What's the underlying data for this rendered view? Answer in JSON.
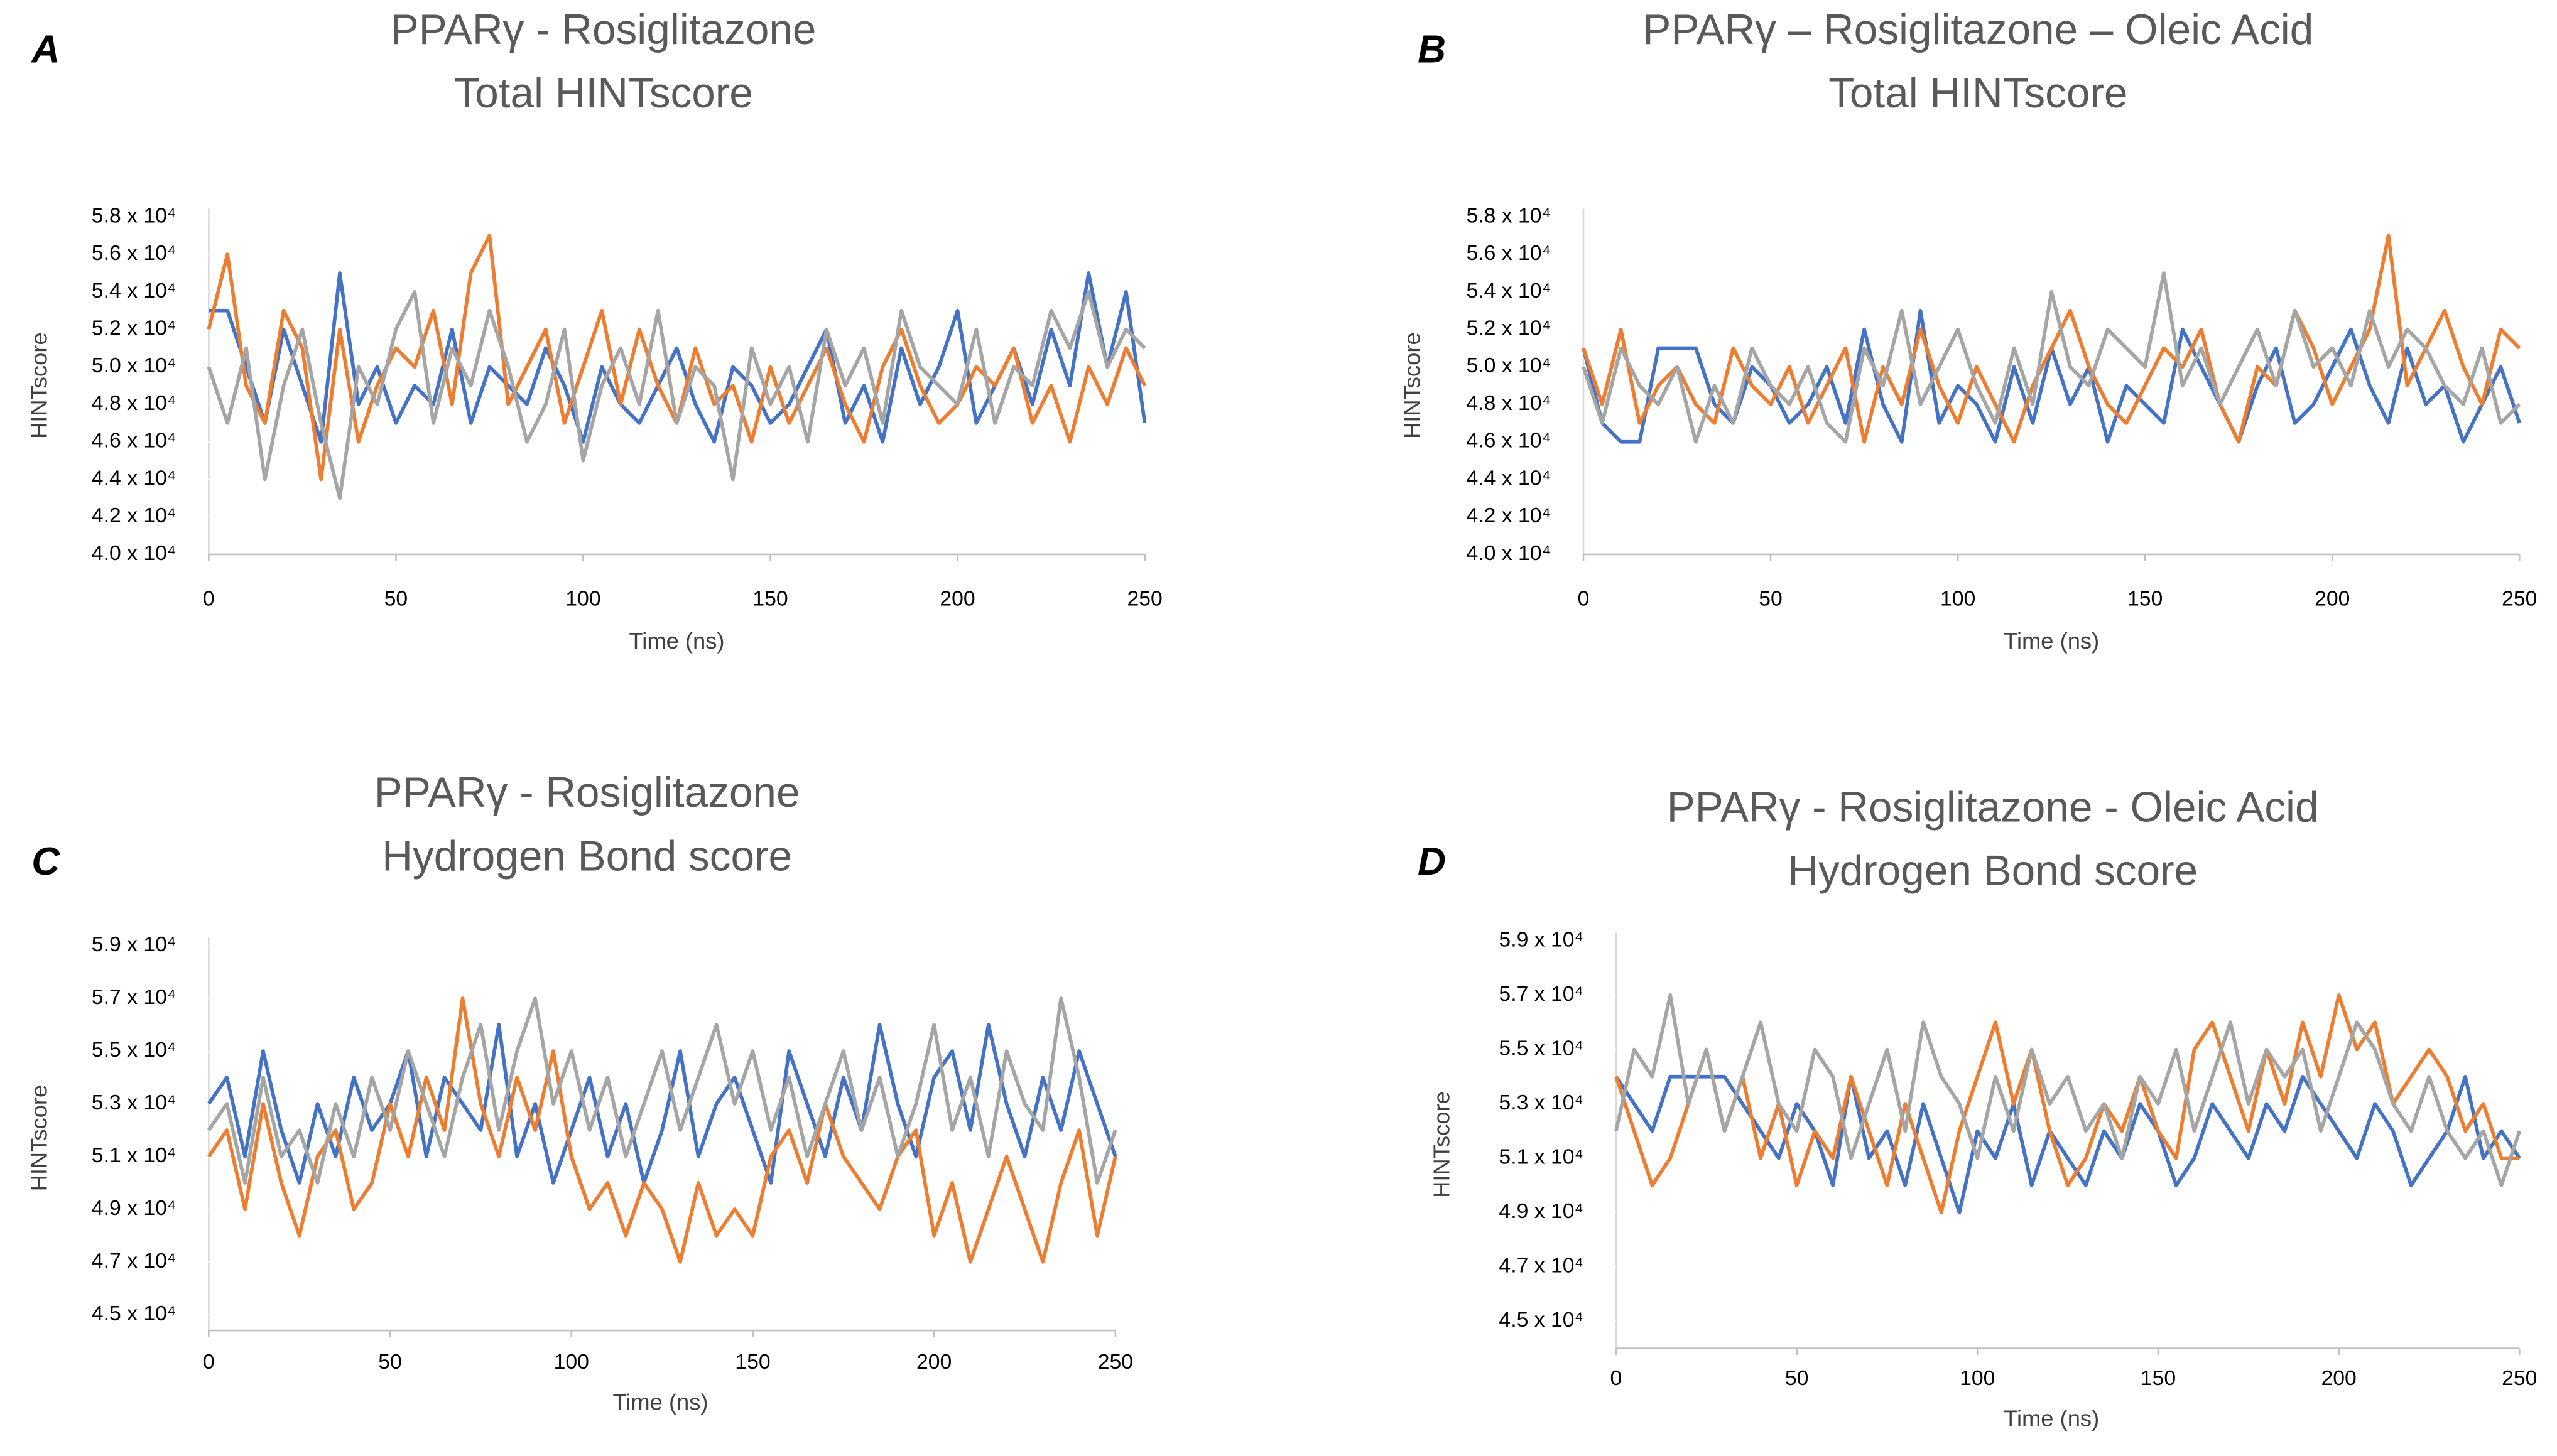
{
  "chart_data": [
    {
      "type": "line",
      "panel_label": "A",
      "title": "PPARγ - Rosiglitazone",
      "subtitle": "Total HINTscore",
      "x_label": "Time (ns)",
      "y_label": "HINTscore",
      "xlim": [
        0,
        250
      ],
      "xticks": [
        0,
        50,
        100,
        150,
        200,
        250
      ],
      "ylim": [
        40000,
        58000
      ],
      "yticks": [
        {
          "value": 40000,
          "label": "4.0 x 10⁴"
        },
        {
          "value": 42000,
          "label": "4.2 x 10⁴"
        },
        {
          "value": 44000,
          "label": "4.4 x 10⁴"
        },
        {
          "value": 46000,
          "label": "4.6 x 10⁴"
        },
        {
          "value": 48000,
          "label": "4.8 x 10⁴"
        },
        {
          "value": 50000,
          "label": "5.0 x 10⁴"
        },
        {
          "value": 52000,
          "label": "5.2 x 10⁴"
        },
        {
          "value": 54000,
          "label": "5.4 x 10⁴"
        },
        {
          "value": 56000,
          "label": "5.6 x 10⁴"
        },
        {
          "value": 58000,
          "label": "5.8 x 10⁴"
        }
      ],
      "x": [
        0,
        5,
        10,
        15,
        20,
        25,
        30,
        35,
        40,
        45,
        50,
        55,
        60,
        65,
        70,
        75,
        80,
        85,
        90,
        95,
        100,
        105,
        110,
        115,
        120,
        125,
        130,
        135,
        140,
        145,
        150,
        155,
        160,
        165,
        170,
        175,
        180,
        185,
        190,
        195,
        200,
        205,
        210,
        215,
        220,
        225,
        230,
        235,
        240,
        245,
        250
      ],
      "series": [
        {
          "color": "#4472c4",
          "values": [
            53000,
            53000,
            50000,
            47000,
            52000,
            49000,
            46000,
            55000,
            48000,
            50000,
            47000,
            49000,
            48000,
            52000,
            47000,
            50000,
            49000,
            48000,
            51000,
            49000,
            46000,
            50000,
            48000,
            47000,
            49000,
            51000,
            48000,
            46000,
            50000,
            49000,
            47000,
            48000,
            50000,
            52000,
            47000,
            49000,
            46000,
            51000,
            48000,
            50000,
            53000,
            47000,
            49000,
            51000,
            48000,
            52000,
            49000,
            55000,
            50000,
            54000,
            47000
          ]
        },
        {
          "color": "#ed7d31",
          "values": [
            52000,
            56000,
            49000,
            47000,
            53000,
            51000,
            44000,
            52000,
            46000,
            49000,
            51000,
            50000,
            53000,
            48000,
            55000,
            57000,
            48000,
            50000,
            52000,
            47000,
            50000,
            53000,
            48000,
            52000,
            49000,
            47000,
            51000,
            48000,
            49000,
            46000,
            50000,
            47000,
            49000,
            51000,
            48000,
            46000,
            50000,
            52000,
            49000,
            47000,
            48000,
            50000,
            49000,
            51000,
            47000,
            49000,
            46000,
            50000,
            48000,
            51000,
            49000
          ]
        },
        {
          "color": "#a5a5a5",
          "values": [
            50000,
            47000,
            51000,
            44000,
            49000,
            52000,
            47000,
            43000,
            50000,
            48000,
            52000,
            54000,
            47000,
            51000,
            49000,
            53000,
            50000,
            46000,
            48000,
            52000,
            45000,
            49000,
            51000,
            48000,
            53000,
            47000,
            50000,
            49000,
            44000,
            51000,
            48000,
            50000,
            46000,
            52000,
            49000,
            51000,
            47000,
            53000,
            50000,
            49000,
            48000,
            52000,
            47000,
            50000,
            49000,
            53000,
            51000,
            54000,
            50000,
            52000,
            51000
          ]
        }
      ]
    },
    {
      "type": "line",
      "panel_label": "B",
      "title": "PPARγ – Rosiglitazone – Oleic Acid",
      "subtitle": "Total HINTscore",
      "x_label": "Time (ns)",
      "y_label": "HINTscore",
      "xlim": [
        0,
        250
      ],
      "xticks": [
        0,
        50,
        100,
        150,
        200,
        250
      ],
      "ylim": [
        40000,
        58000
      ],
      "yticks": [
        {
          "value": 40000,
          "label": "4.0 x 10⁴"
        },
        {
          "value": 42000,
          "label": "4.2 x 10⁴"
        },
        {
          "value": 44000,
          "label": "4.4 x 10⁴"
        },
        {
          "value": 46000,
          "label": "4.6 x 10⁴"
        },
        {
          "value": 48000,
          "label": "4.8 x 10⁴"
        },
        {
          "value": 50000,
          "label": "5.0 x 10⁴"
        },
        {
          "value": 52000,
          "label": "5.2 x 10⁴"
        },
        {
          "value": 54000,
          "label": "5.4 x 10⁴"
        },
        {
          "value": 56000,
          "label": "5.6 x 10⁴"
        },
        {
          "value": 58000,
          "label": "5.8 x 10⁴"
        }
      ],
      "x": [
        0,
        5,
        10,
        15,
        20,
        25,
        30,
        35,
        40,
        45,
        50,
        55,
        60,
        65,
        70,
        75,
        80,
        85,
        90,
        95,
        100,
        105,
        110,
        115,
        120,
        125,
        130,
        135,
        140,
        145,
        150,
        155,
        160,
        165,
        170,
        175,
        180,
        185,
        190,
        195,
        200,
        205,
        210,
        215,
        220,
        225,
        230,
        235,
        240,
        245,
        250
      ],
      "series": [
        {
          "color": "#4472c4",
          "values": [
            51000,
            47000,
            46000,
            46000,
            51000,
            51000,
            51000,
            48000,
            47000,
            50000,
            49000,
            47000,
            48000,
            50000,
            47000,
            52000,
            48000,
            46000,
            53000,
            47000,
            49000,
            48000,
            46000,
            50000,
            47000,
            51000,
            48000,
            50000,
            46000,
            49000,
            48000,
            47000,
            52000,
            50000,
            48000,
            46000,
            49000,
            51000,
            47000,
            48000,
            50000,
            52000,
            49000,
            47000,
            51000,
            48000,
            49000,
            46000,
            48000,
            50000,
            47000
          ]
        },
        {
          "color": "#ed7d31",
          "values": [
            51000,
            48000,
            52000,
            47000,
            49000,
            50000,
            48000,
            47000,
            51000,
            49000,
            48000,
            50000,
            47000,
            49000,
            51000,
            46000,
            50000,
            48000,
            52000,
            49000,
            47000,
            50000,
            48000,
            46000,
            49000,
            51000,
            53000,
            50000,
            48000,
            47000,
            49000,
            51000,
            50000,
            52000,
            48000,
            46000,
            50000,
            49000,
            53000,
            51000,
            48000,
            50000,
            52000,
            57000,
            49000,
            51000,
            53000,
            50000,
            48000,
            52000,
            51000
          ]
        },
        {
          "color": "#a5a5a5",
          "values": [
            50000,
            47000,
            51000,
            49000,
            48000,
            50000,
            46000,
            49000,
            47000,
            51000,
            49000,
            48000,
            50000,
            47000,
            46000,
            51000,
            49000,
            53000,
            48000,
            50000,
            52000,
            49000,
            47000,
            51000,
            48000,
            54000,
            50000,
            49000,
            52000,
            51000,
            50000,
            55000,
            49000,
            51000,
            48000,
            50000,
            52000,
            49000,
            53000,
            50000,
            51000,
            49000,
            53000,
            50000,
            52000,
            51000,
            49000,
            48000,
            51000,
            47000,
            48000
          ]
        }
      ]
    },
    {
      "type": "line",
      "panel_label": "C",
      "title": "PPARγ - Rosiglitazone",
      "subtitle": "Hydrogen Bond score",
      "x_label": "Time (ns)",
      "y_label": "HINTscore",
      "xlim": [
        0,
        250
      ],
      "xticks": [
        0,
        50,
        100,
        150,
        200,
        250
      ],
      "ylim": [
        44400,
        59000
      ],
      "yticks": [
        {
          "value": 45000,
          "label": "4.5 x 10⁴"
        },
        {
          "value": 47000,
          "label": "4.7 x 10⁴"
        },
        {
          "value": 49000,
          "label": "4.9 x 10⁴"
        },
        {
          "value": 51000,
          "label": "5.1 x 10⁴"
        },
        {
          "value": 53000,
          "label": "5.3 x 10⁴"
        },
        {
          "value": 55000,
          "label": "5.5 x 10⁴"
        },
        {
          "value": 57000,
          "label": "5.7 x 10⁴"
        },
        {
          "value": 59000,
          "label": "5.9 x 10⁴"
        }
      ],
      "x": [
        0,
        5,
        10,
        15,
        20,
        25,
        30,
        35,
        40,
        45,
        50,
        55,
        60,
        65,
        70,
        75,
        80,
        85,
        90,
        95,
        100,
        105,
        110,
        115,
        120,
        125,
        130,
        135,
        140,
        145,
        150,
        155,
        160,
        165,
        170,
        175,
        180,
        185,
        190,
        195,
        200,
        205,
        210,
        215,
        220,
        225,
        230,
        235,
        240,
        245,
        250
      ],
      "series": [
        {
          "color": "#4472c4",
          "values": [
            53000,
            54000,
            51000,
            55000,
            52000,
            50000,
            53000,
            51000,
            54000,
            52000,
            53000,
            55000,
            51000,
            54000,
            53000,
            52000,
            56000,
            51000,
            53000,
            50000,
            52000,
            54000,
            51000,
            53000,
            50000,
            52000,
            55000,
            51000,
            53000,
            54000,
            52000,
            50000,
            55000,
            53000,
            51000,
            54000,
            52000,
            56000,
            53000,
            51000,
            54000,
            55000,
            52000,
            56000,
            53000,
            51000,
            54000,
            52000,
            55000,
            53000,
            51000
          ]
        },
        {
          "color": "#ed7d31",
          "values": [
            51000,
            52000,
            49000,
            53000,
            50000,
            48000,
            51000,
            52000,
            49000,
            50000,
            53000,
            51000,
            54000,
            52000,
            57000,
            53000,
            51000,
            54000,
            52000,
            55000,
            51000,
            49000,
            50000,
            48000,
            50000,
            49000,
            47000,
            50000,
            48000,
            49000,
            48000,
            51000,
            52000,
            50000,
            53000,
            51000,
            50000,
            49000,
            51000,
            52000,
            48000,
            50000,
            47000,
            49000,
            51000,
            49000,
            47000,
            50000,
            52000,
            48000,
            51000
          ]
        },
        {
          "color": "#a5a5a5",
          "values": [
            52000,
            53000,
            50000,
            54000,
            51000,
            52000,
            50000,
            53000,
            51000,
            54000,
            52000,
            55000,
            53000,
            51000,
            54000,
            56000,
            52000,
            55000,
            57000,
            53000,
            55000,
            52000,
            54000,
            51000,
            53000,
            55000,
            52000,
            54000,
            56000,
            53000,
            55000,
            52000,
            54000,
            51000,
            53000,
            55000,
            52000,
            54000,
            51000,
            53000,
            56000,
            52000,
            54000,
            51000,
            55000,
            53000,
            52000,
            57000,
            54000,
            50000,
            52000
          ]
        }
      ]
    },
    {
      "type": "line",
      "panel_label": "D",
      "title": "PPARγ - Rosiglitazone - Oleic Acid",
      "subtitle": "Hydrogen Bond score",
      "x_label": "Time (ns)",
      "y_label": "HINTscore",
      "xlim": [
        0,
        250
      ],
      "xticks": [
        0,
        50,
        100,
        150,
        200,
        250
      ],
      "ylim": [
        44000,
        59000
      ],
      "yticks": [
        {
          "value": 45000,
          "label": "4.5 x 10⁴"
        },
        {
          "value": 47000,
          "label": "4.7 x 10⁴"
        },
        {
          "value": 49000,
          "label": "4.9 x 10⁴"
        },
        {
          "value": 51000,
          "label": "5.1 x 10⁴"
        },
        {
          "value": 53000,
          "label": "5.3 x 10⁴"
        },
        {
          "value": 55000,
          "label": "5.5 x 10⁴"
        },
        {
          "value": 57000,
          "label": "5.7 x 10⁴"
        },
        {
          "value": 59000,
          "label": "5.9 x 10⁴"
        }
      ],
      "x": [
        0,
        5,
        10,
        15,
        20,
        25,
        30,
        35,
        40,
        45,
        50,
        55,
        60,
        65,
        70,
        75,
        80,
        85,
        90,
        95,
        100,
        105,
        110,
        115,
        120,
        125,
        130,
        135,
        140,
        145,
        150,
        155,
        160,
        165,
        170,
        175,
        180,
        185,
        190,
        195,
        200,
        205,
        210,
        215,
        220,
        225,
        230,
        235,
        240,
        245,
        250
      ],
      "series": [
        {
          "color": "#4472c4",
          "values": [
            54000,
            53000,
            52000,
            54000,
            54000,
            54000,
            54000,
            53000,
            52000,
            51000,
            53000,
            52000,
            50000,
            54000,
            51000,
            52000,
            50000,
            53000,
            51000,
            49000,
            52000,
            51000,
            53000,
            50000,
            52000,
            51000,
            50000,
            52000,
            51000,
            53000,
            52000,
            50000,
            51000,
            53000,
            52000,
            51000,
            53000,
            52000,
            54000,
            53000,
            52000,
            51000,
            53000,
            52000,
            50000,
            51000,
            52000,
            54000,
            51000,
            52000,
            51000
          ]
        },
        {
          "color": "#ed7d31",
          "values": [
            54000,
            52000,
            50000,
            51000,
            53000,
            55000,
            52000,
            54000,
            51000,
            53000,
            50000,
            52000,
            51000,
            54000,
            52000,
            50000,
            53000,
            51000,
            49000,
            52000,
            54000,
            56000,
            53000,
            55000,
            52000,
            50000,
            51000,
            53000,
            52000,
            54000,
            52000,
            51000,
            55000,
            56000,
            54000,
            52000,
            55000,
            53000,
            56000,
            54000,
            57000,
            55000,
            56000,
            53000,
            54000,
            55000,
            54000,
            52000,
            53000,
            51000,
            51000
          ]
        },
        {
          "color": "#a5a5a5",
          "values": [
            52000,
            55000,
            54000,
            57000,
            53000,
            55000,
            52000,
            54000,
            56000,
            53000,
            52000,
            55000,
            54000,
            51000,
            53000,
            55000,
            52000,
            56000,
            54000,
            53000,
            51000,
            54000,
            52000,
            55000,
            53000,
            54000,
            52000,
            53000,
            51000,
            54000,
            53000,
            55000,
            52000,
            54000,
            56000,
            53000,
            55000,
            54000,
            55000,
            52000,
            54000,
            56000,
            55000,
            53000,
            52000,
            54000,
            52000,
            51000,
            52000,
            50000,
            52000
          ]
        }
      ]
    }
  ]
}
